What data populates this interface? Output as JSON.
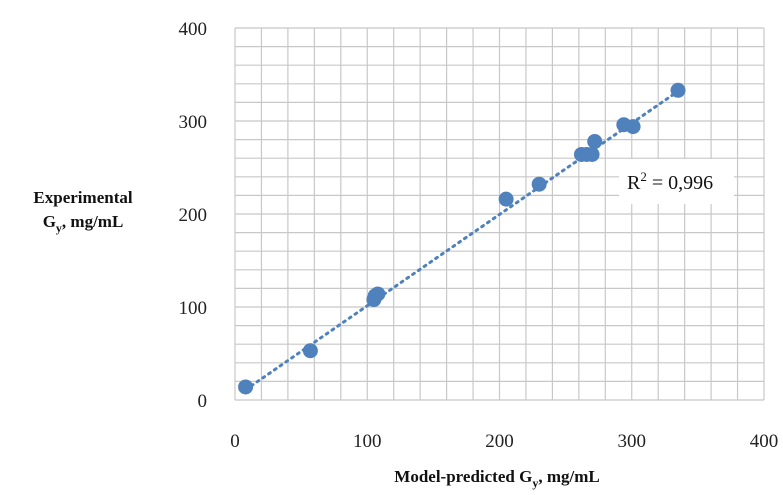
{
  "chart_data": {
    "type": "scatter",
    "xlim": [
      0,
      400
    ],
    "ylim": [
      0,
      400
    ],
    "xticks": [
      "0",
      "100",
      "200",
      "300",
      "400"
    ],
    "yticks": [
      "0",
      "100",
      "200",
      "300",
      "400"
    ],
    "xlabel": {
      "main": "Model-predicted G",
      "sub": "y",
      "unit": ", mg/mL"
    },
    "ylabel": {
      "line1": "Experimental",
      "main": "G",
      "sub": "y",
      "unit": ", mg/mL"
    },
    "grid": true,
    "series": [
      {
        "color": "#4f81bd",
        "points": [
          {
            "x": 8,
            "y": 14
          },
          {
            "x": 57,
            "y": 53
          },
          {
            "x": 105,
            "y": 108
          },
          {
            "x": 106,
            "y": 112
          },
          {
            "x": 108,
            "y": 114
          },
          {
            "x": 205,
            "y": 216
          },
          {
            "x": 230,
            "y": 232
          },
          {
            "x": 262,
            "y": 264
          },
          {
            "x": 266,
            "y": 264
          },
          {
            "x": 270,
            "y": 264
          },
          {
            "x": 272,
            "y": 278
          },
          {
            "x": 294,
            "y": 296
          },
          {
            "x": 301,
            "y": 294
          },
          {
            "x": 335,
            "y": 333
          }
        ]
      }
    ],
    "trendline": {
      "style": "dotted",
      "color": "#4f81bd",
      "from": {
        "x": 8,
        "y": 11
      },
      "to": {
        "x": 336,
        "y": 333
      }
    },
    "annotation": {
      "base": "R",
      "sup": "2",
      "rest": " = 0,996"
    }
  }
}
